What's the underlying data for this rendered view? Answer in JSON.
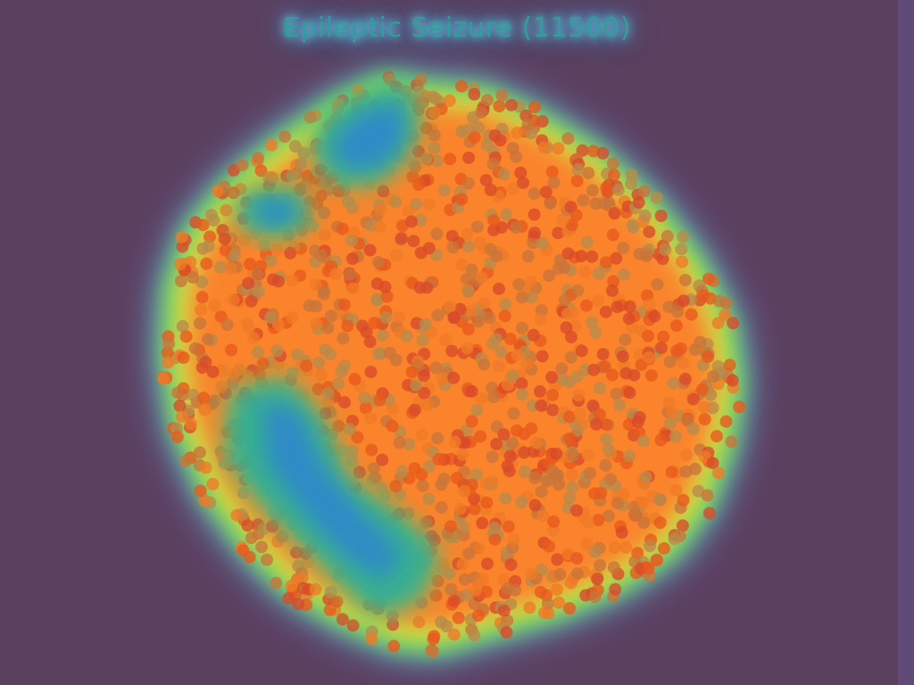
{
  "chart_data": {
    "type": "scatter",
    "title": "Epileptic Seizure (11500)",
    "overlay": "heatmap",
    "point_count": 11500,
    "axes_visible": false,
    "grid": false,
    "legend": "none",
    "colors": {
      "background": "#5b4060",
      "points": [
        "#d94a2a",
        "#e85a1c",
        "#f07a26",
        "#c8753a",
        "#b88a4a"
      ],
      "heat_high": "#ff7a2a",
      "heat_mid": "#f2e23a",
      "heat_low_mid": "#5cd05a",
      "heat_low": "#2f7fd9",
      "halo": "#6fc8ff"
    },
    "low_density_regions": [
      {
        "name": "top-left cluster"
      },
      {
        "name": "upper-left small cluster"
      },
      {
        "name": "lower-left elongated cluster"
      }
    ]
  }
}
